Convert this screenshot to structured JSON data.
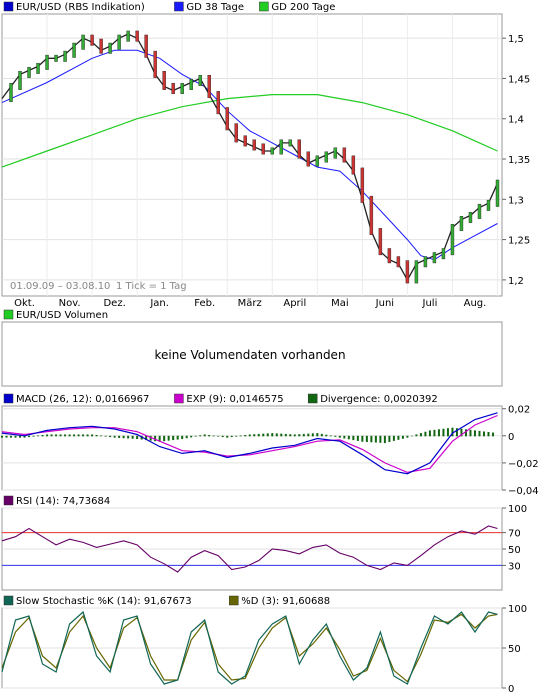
{
  "price_panel": {
    "legend": [
      {
        "label": "EUR/USD (RBS Indikation)",
        "color": "#0000cc"
      },
      {
        "label": "GD 38 Tage",
        "color": "#1a1aff"
      },
      {
        "label": "GD 200 Tage",
        "color": "#22cc22"
      }
    ],
    "date_range": "01.09.09 – 03.08.10",
    "tick_info": "1 Tick = 1 Tag"
  },
  "volume_panel": {
    "legend": [
      {
        "label": "EUR/USD Volumen",
        "color": "#22cc22"
      }
    ],
    "message": "keine Volumendaten vorhanden"
  },
  "macd_panel": {
    "legend": [
      {
        "label": "MACD (26, 12): 0,0166967",
        "color": "#0000cc"
      },
      {
        "label": "EXP (9): 0,0146575",
        "color": "#cc00cc"
      },
      {
        "label": "Divergence: 0,0020392",
        "color": "#116611"
      }
    ]
  },
  "rsi_panel": {
    "legend": [
      {
        "label": "RSI (14): 74,73684",
        "color": "#660066"
      }
    ]
  },
  "stoch_panel": {
    "legend": [
      {
        "label": "Slow Stochastic %K (14): 91,67673",
        "color": "#116655"
      },
      {
        "label": "%D (3): 91,60688",
        "color": "#666600"
      }
    ]
  },
  "chart_data": [
    {
      "type": "candlestick",
      "name": "EUR/USD (RBS Indikation)",
      "x_tick_labels": [
        "Okt.",
        "Nov.",
        "Dez.",
        "Jan.",
        "Feb.",
        "März",
        "April",
        "Mai",
        "Juni",
        "Juli",
        "Aug."
      ],
      "x_month_index": [
        1,
        2,
        3,
        4,
        5,
        6,
        7,
        8,
        9,
        10,
        11
      ],
      "y_ticks": [
        "1,5",
        "1,45",
        "1,4",
        "1,35",
        "1,3",
        "1,25",
        "1,2"
      ],
      "y_tick_values": [
        1.5,
        1.45,
        1.4,
        1.35,
        1.3,
        1.25,
        1.2
      ],
      "ylim": [
        1.18,
        1.53
      ],
      "xlim_months": [
        0,
        11.1
      ],
      "close_path": [
        [
          0.0,
          1.425
        ],
        [
          0.2,
          1.44
        ],
        [
          0.4,
          1.455
        ],
        [
          0.6,
          1.46
        ],
        [
          0.8,
          1.465
        ],
        [
          1.0,
          1.475
        ],
        [
          1.2,
          1.475
        ],
        [
          1.4,
          1.48
        ],
        [
          1.6,
          1.49
        ],
        [
          1.8,
          1.5
        ],
        [
          2.0,
          1.495
        ],
        [
          2.2,
          1.485
        ],
        [
          2.4,
          1.49
        ],
        [
          2.6,
          1.5
        ],
        [
          2.8,
          1.505
        ],
        [
          3.0,
          1.5
        ],
        [
          3.2,
          1.48
        ],
        [
          3.4,
          1.455
        ],
        [
          3.6,
          1.44
        ],
        [
          3.8,
          1.435
        ],
        [
          4.0,
          1.44
        ],
        [
          4.2,
          1.445
        ],
        [
          4.4,
          1.45
        ],
        [
          4.6,
          1.43
        ],
        [
          4.8,
          1.41
        ],
        [
          5.0,
          1.39
        ],
        [
          5.2,
          1.375
        ],
        [
          5.4,
          1.37
        ],
        [
          5.6,
          1.365
        ],
        [
          5.8,
          1.36
        ],
        [
          6.0,
          1.36
        ],
        [
          6.2,
          1.37
        ],
        [
          6.4,
          1.37
        ],
        [
          6.6,
          1.355
        ],
        [
          6.8,
          1.345
        ],
        [
          7.0,
          1.35
        ],
        [
          7.2,
          1.355
        ],
        [
          7.4,
          1.36
        ],
        [
          7.6,
          1.35
        ],
        [
          7.8,
          1.335
        ],
        [
          8.0,
          1.3
        ],
        [
          8.2,
          1.26
        ],
        [
          8.4,
          1.235
        ],
        [
          8.6,
          1.225
        ],
        [
          8.8,
          1.22
        ],
        [
          9.0,
          1.2
        ],
        [
          9.2,
          1.22
        ],
        [
          9.4,
          1.225
        ],
        [
          9.6,
          1.23
        ],
        [
          9.8,
          1.235
        ],
        [
          10.0,
          1.265
        ],
        [
          10.2,
          1.275
        ],
        [
          10.4,
          1.28
        ],
        [
          10.6,
          1.29
        ],
        [
          10.8,
          1.295
        ],
        [
          11.0,
          1.32
        ]
      ],
      "gd38_path": [
        [
          0.0,
          1.42
        ],
        [
          1.0,
          1.445
        ],
        [
          2.0,
          1.475
        ],
        [
          2.5,
          1.485
        ],
        [
          3.0,
          1.485
        ],
        [
          3.5,
          1.475
        ],
        [
          4.0,
          1.455
        ],
        [
          4.5,
          1.44
        ],
        [
          5.0,
          1.41
        ],
        [
          5.5,
          1.385
        ],
        [
          6.0,
          1.37
        ],
        [
          6.5,
          1.355
        ],
        [
          7.0,
          1.34
        ],
        [
          7.5,
          1.335
        ],
        [
          8.0,
          1.31
        ],
        [
          8.5,
          1.28
        ],
        [
          9.0,
          1.25
        ],
        [
          9.3,
          1.23
        ],
        [
          9.6,
          1.225
        ],
        [
          10.0,
          1.24
        ],
        [
          10.5,
          1.255
        ],
        [
          11.0,
          1.27
        ]
      ],
      "gd200_path": [
        [
          0.0,
          1.34
        ],
        [
          1.0,
          1.36
        ],
        [
          2.0,
          1.38
        ],
        [
          3.0,
          1.4
        ],
        [
          4.0,
          1.415
        ],
        [
          5.0,
          1.425
        ],
        [
          6.0,
          1.43
        ],
        [
          7.0,
          1.43
        ],
        [
          8.0,
          1.42
        ],
        [
          9.0,
          1.405
        ],
        [
          10.0,
          1.385
        ],
        [
          10.6,
          1.37
        ],
        [
          11.0,
          1.36
        ]
      ]
    },
    {
      "type": "line",
      "name": "MACD",
      "y_ticks": [
        "0,02",
        "0",
        "−0,02",
        "−0,04"
      ],
      "y_tick_values": [
        0.02,
        0,
        -0.02,
        -0.04
      ],
      "ylim": [
        -0.04,
        0.022
      ],
      "macd_path": [
        [
          0.0,
          0.002
        ],
        [
          0.5,
          0.0
        ],
        [
          1.0,
          0.004
        ],
        [
          1.5,
          0.006
        ],
        [
          2.0,
          0.007
        ],
        [
          2.5,
          0.005
        ],
        [
          3.0,
          0.001
        ],
        [
          3.5,
          -0.008
        ],
        [
          4.0,
          -0.013
        ],
        [
          4.5,
          -0.011
        ],
        [
          5.0,
          -0.016
        ],
        [
          5.5,
          -0.013
        ],
        [
          6.0,
          -0.009
        ],
        [
          6.5,
          -0.007
        ],
        [
          7.0,
          -0.002
        ],
        [
          7.5,
          -0.004
        ],
        [
          8.0,
          -0.014
        ],
        [
          8.5,
          -0.025
        ],
        [
          9.0,
          -0.028
        ],
        [
          9.5,
          -0.02
        ],
        [
          10.0,
          0.002
        ],
        [
          10.5,
          0.012
        ],
        [
          11.0,
          0.017
        ]
      ],
      "exp_path": [
        [
          0.0,
          0.003
        ],
        [
          0.5,
          0.001
        ],
        [
          1.0,
          0.003
        ],
        [
          1.5,
          0.005
        ],
        [
          2.0,
          0.006
        ],
        [
          2.5,
          0.006
        ],
        [
          3.0,
          0.003
        ],
        [
          3.5,
          -0.004
        ],
        [
          4.0,
          -0.011
        ],
        [
          4.5,
          -0.012
        ],
        [
          5.0,
          -0.015
        ],
        [
          5.5,
          -0.014
        ],
        [
          6.0,
          -0.011
        ],
        [
          6.5,
          -0.008
        ],
        [
          7.0,
          -0.004
        ],
        [
          7.5,
          -0.003
        ],
        [
          8.0,
          -0.01
        ],
        [
          8.5,
          -0.02
        ],
        [
          9.0,
          -0.027
        ],
        [
          9.5,
          -0.024
        ],
        [
          10.0,
          -0.004
        ],
        [
          10.5,
          0.008
        ],
        [
          11.0,
          0.015
        ]
      ]
    },
    {
      "type": "line",
      "name": "RSI (14)",
      "y_ticks": [
        "100",
        "70",
        "50",
        "30"
      ],
      "y_tick_values": [
        100,
        70,
        50,
        30
      ],
      "reference_lines": [
        70,
        30
      ],
      "ylim": [
        0,
        100
      ],
      "rsi_path": [
        [
          0.0,
          60
        ],
        [
          0.3,
          65
        ],
        [
          0.6,
          75
        ],
        [
          0.9,
          65
        ],
        [
          1.2,
          55
        ],
        [
          1.5,
          62
        ],
        [
          1.8,
          58
        ],
        [
          2.1,
          52
        ],
        [
          2.4,
          56
        ],
        [
          2.7,
          60
        ],
        [
          3.0,
          55
        ],
        [
          3.3,
          40
        ],
        [
          3.6,
          32
        ],
        [
          3.9,
          22
        ],
        [
          4.2,
          40
        ],
        [
          4.5,
          48
        ],
        [
          4.8,
          42
        ],
        [
          5.1,
          25
        ],
        [
          5.4,
          28
        ],
        [
          5.7,
          36
        ],
        [
          6.0,
          50
        ],
        [
          6.3,
          48
        ],
        [
          6.6,
          44
        ],
        [
          6.9,
          52
        ],
        [
          7.2,
          55
        ],
        [
          7.5,
          45
        ],
        [
          7.8,
          40
        ],
        [
          8.1,
          30
        ],
        [
          8.4,
          25
        ],
        [
          8.7,
          33
        ],
        [
          9.0,
          30
        ],
        [
          9.3,
          42
        ],
        [
          9.6,
          55
        ],
        [
          9.9,
          65
        ],
        [
          10.2,
          72
        ],
        [
          10.5,
          68
        ],
        [
          10.8,
          78
        ],
        [
          11.0,
          75
        ]
      ]
    },
    {
      "type": "line",
      "name": "Slow Stochastic",
      "y_ticks": [
        "100",
        "50",
        "0"
      ],
      "y_tick_values": [
        100,
        50,
        0
      ],
      "ylim": [
        0,
        100
      ],
      "k_path": [
        [
          0.0,
          20
        ],
        [
          0.3,
          85
        ],
        [
          0.6,
          90
        ],
        [
          0.9,
          30
        ],
        [
          1.2,
          20
        ],
        [
          1.5,
          80
        ],
        [
          1.8,
          95
        ],
        [
          2.1,
          40
        ],
        [
          2.4,
          20
        ],
        [
          2.7,
          85
        ],
        [
          3.0,
          90
        ],
        [
          3.3,
          30
        ],
        [
          3.6,
          5
        ],
        [
          3.9,
          10
        ],
        [
          4.2,
          70
        ],
        [
          4.5,
          85
        ],
        [
          4.8,
          20
        ],
        [
          5.1,
          5
        ],
        [
          5.4,
          15
        ],
        [
          5.7,
          60
        ],
        [
          6.0,
          80
        ],
        [
          6.3,
          90
        ],
        [
          6.6,
          30
        ],
        [
          6.9,
          60
        ],
        [
          7.2,
          80
        ],
        [
          7.5,
          40
        ],
        [
          7.8,
          10
        ],
        [
          8.1,
          25
        ],
        [
          8.4,
          70
        ],
        [
          8.7,
          15
        ],
        [
          9.0,
          5
        ],
        [
          9.3,
          50
        ],
        [
          9.6,
          90
        ],
        [
          9.9,
          80
        ],
        [
          10.2,
          95
        ],
        [
          10.5,
          70
        ],
        [
          10.8,
          95
        ],
        [
          11.0,
          92
        ]
      ],
      "d_path": [
        [
          0.0,
          25
        ],
        [
          0.3,
          70
        ],
        [
          0.6,
          88
        ],
        [
          0.9,
          40
        ],
        [
          1.2,
          25
        ],
        [
          1.5,
          70
        ],
        [
          1.8,
          90
        ],
        [
          2.1,
          50
        ],
        [
          2.4,
          25
        ],
        [
          2.7,
          75
        ],
        [
          3.0,
          88
        ],
        [
          3.3,
          40
        ],
        [
          3.6,
          10
        ],
        [
          3.9,
          10
        ],
        [
          4.2,
          60
        ],
        [
          4.5,
          82
        ],
        [
          4.8,
          30
        ],
        [
          5.1,
          10
        ],
        [
          5.4,
          12
        ],
        [
          5.7,
          50
        ],
        [
          6.0,
          75
        ],
        [
          6.3,
          88
        ],
        [
          6.6,
          40
        ],
        [
          6.9,
          55
        ],
        [
          7.2,
          75
        ],
        [
          7.5,
          48
        ],
        [
          7.8,
          15
        ],
        [
          8.1,
          22
        ],
        [
          8.4,
          62
        ],
        [
          8.7,
          22
        ],
        [
          9.0,
          8
        ],
        [
          9.3,
          42
        ],
        [
          9.6,
          85
        ],
        [
          9.9,
          82
        ],
        [
          10.2,
          92
        ],
        [
          10.5,
          75
        ],
        [
          10.8,
          90
        ],
        [
          11.0,
          92
        ]
      ]
    }
  ]
}
